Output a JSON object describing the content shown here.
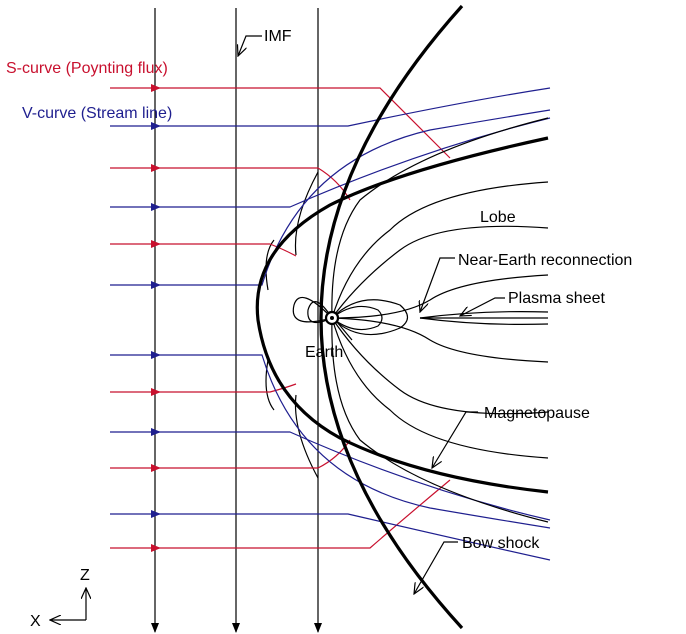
{
  "labels": {
    "imf": "IMF",
    "s_curve": "S-curve (Poynting flux)",
    "v_curve": "V-curve (Stream line)",
    "lobe": "Lobe",
    "near_earth_reconnection": "Near-Earth reconnection",
    "plasma_sheet": "Plasma sheet",
    "earth": "Earth",
    "magnetopause": "Magnetopause",
    "bow_shock": "Bow shock",
    "axis_z": "Z",
    "axis_x": "X"
  },
  "colors": {
    "s_curve": "#c8102e",
    "v_curve": "#1f1f8f",
    "field_lines": "#000000"
  }
}
